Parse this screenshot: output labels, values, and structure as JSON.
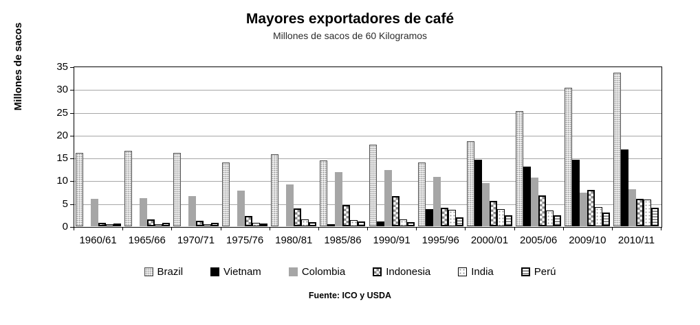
{
  "chart_data": {
    "type": "bar",
    "title": "Mayores exportadores de café",
    "subtitle": "Millones de sacos de 60 Kilogramos",
    "ylabel": "Millones de sacos",
    "xlabel": "",
    "source": "Fuente: ICO y USDA",
    "ylim": [
      0,
      35
    ],
    "ytick_step": 5,
    "grid": true,
    "legend_position": "bottom",
    "categories": [
      "1960/61",
      "1965/66",
      "1970/71",
      "1975/76",
      "1980/81",
      "1985/86",
      "1990/91",
      "1995/96",
      "2000/01",
      "2005/06",
      "2009/10",
      "2010/11"
    ],
    "series": [
      {
        "name": "Brazil",
        "pattern": "brazil",
        "values": [
          16.1,
          16.6,
          16.1,
          14.0,
          15.8,
          14.4,
          17.9,
          14.0,
          18.6,
          25.2,
          30.3,
          33.7
        ]
      },
      {
        "name": "Vietnam",
        "pattern": "vietnam",
        "values": [
          0,
          0,
          0,
          0,
          0,
          0.3,
          1.0,
          3.8,
          14.6,
          13.1,
          14.6,
          16.9
        ]
      },
      {
        "name": "Colombia",
        "pattern": "colombia",
        "values": [
          6.0,
          6.1,
          6.6,
          7.8,
          9.1,
          11.9,
          12.3,
          10.8,
          9.5,
          10.7,
          7.4,
          8.1
        ]
      },
      {
        "name": "Indonesia",
        "pattern": "indonesia",
        "values": [
          0.7,
          1.5,
          1.2,
          2.2,
          3.9,
          4.6,
          6.6,
          4.1,
          5.6,
          6.8,
          8.0,
          6.0
        ]
      },
      {
        "name": "India",
        "pattern": "india",
        "values": [
          0.4,
          0.3,
          0.4,
          0.7,
          1.5,
          1.3,
          1.5,
          3.6,
          3.8,
          3.4,
          4.2,
          5.9
        ]
      },
      {
        "name": "Perú",
        "pattern": "peru",
        "values": [
          0.6,
          0.7,
          0.7,
          0.6,
          0.9,
          1.1,
          0.9,
          1.9,
          2.4,
          2.4,
          3.0,
          4.0
        ]
      }
    ]
  },
  "colors": {
    "plot_border": "#000000",
    "gridline": "#a6a6a6",
    "brazil_pattern_gray": "#8a8a8a",
    "vietnam_black": "#000000",
    "colombia_gray": "#a6a6a6",
    "background": "#ffffff"
  }
}
